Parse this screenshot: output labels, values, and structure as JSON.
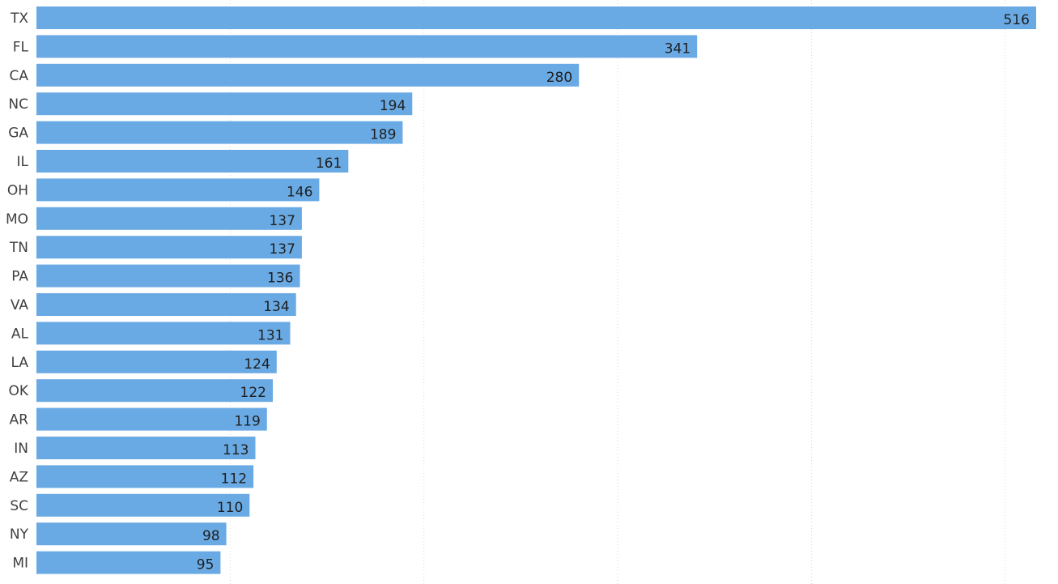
{
  "chart_data": {
    "type": "bar",
    "orientation": "horizontal",
    "categories": [
      "TX",
      "FL",
      "CA",
      "NC",
      "GA",
      "IL",
      "OH",
      "MO",
      "TN",
      "PA",
      "VA",
      "AL",
      "LA",
      "OK",
      "AR",
      "IN",
      "AZ",
      "SC",
      "NY",
      "MI"
    ],
    "values": [
      516,
      341,
      280,
      194,
      189,
      161,
      146,
      137,
      137,
      136,
      134,
      131,
      124,
      122,
      119,
      113,
      112,
      110,
      98,
      95
    ],
    "title": "",
    "xlabel": "",
    "ylabel": "",
    "xlim": [
      0,
      520
    ],
    "grid": true,
    "data_labels": true,
    "bar_color": "#6aaae4",
    "grid_color": "#d9d9d9"
  }
}
